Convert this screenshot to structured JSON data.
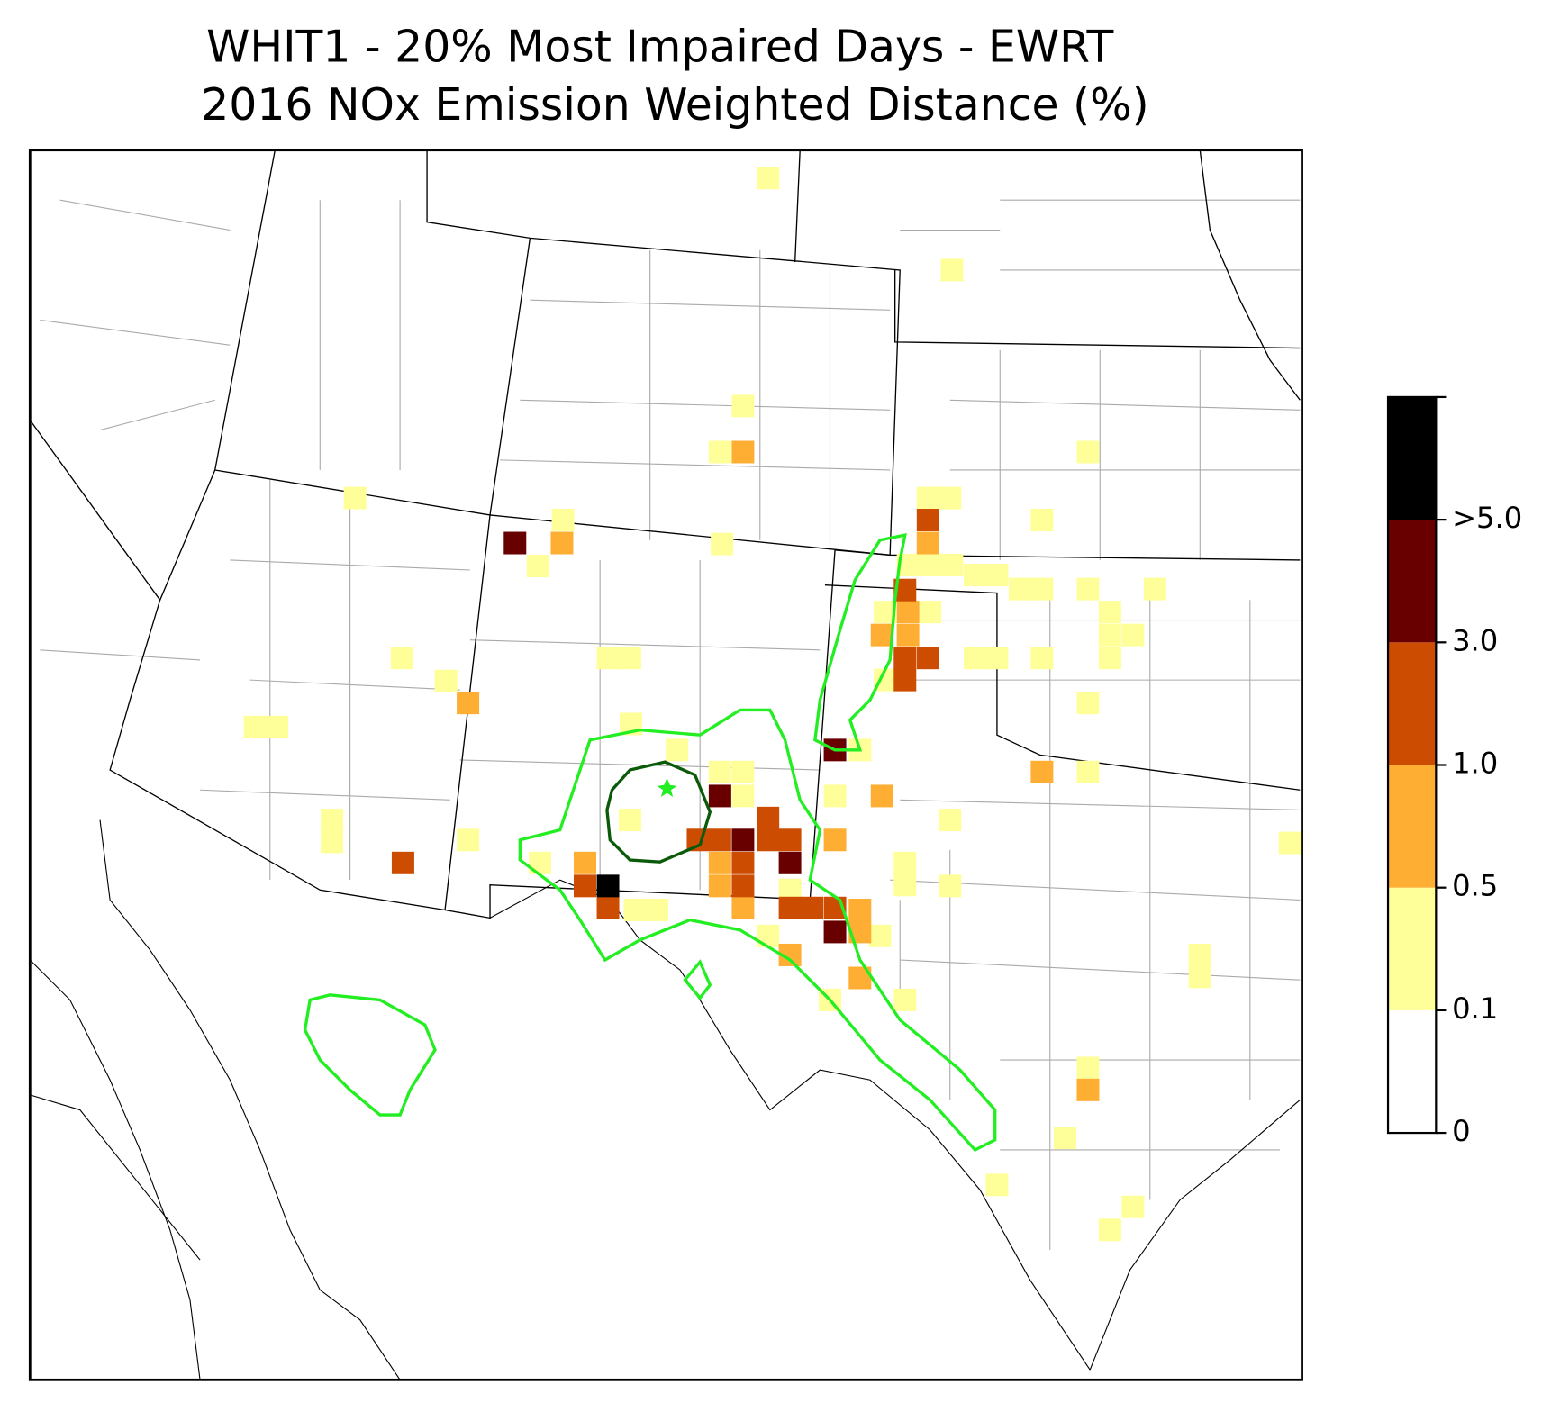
{
  "chart_data": {
    "type": "map",
    "title": "WHIT1 - 20% Most Impaired Days - EWRT",
    "subtitle": "2016 NOx Emission Weighted Distance (%)",
    "colorbar": {
      "ticks": [
        0,
        0.1,
        0.5,
        {
          "value": 1,
          "label": "1.0"
        },
        {
          "value": 3,
          "label": "3.0"
        },
        {
          "value": 5,
          "label": ">5.0"
        }
      ],
      "colors": [
        "#ffffff",
        "#ffff99",
        "#fdae33",
        "#cc4c02",
        "#680000",
        "#000000"
      ]
    }
  }
}
